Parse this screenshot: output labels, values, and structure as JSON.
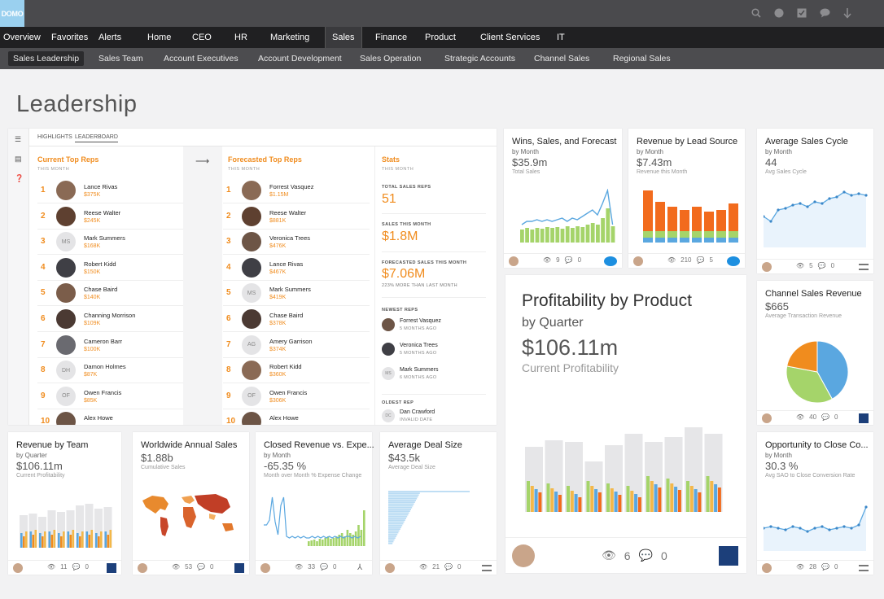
{
  "app": {
    "logo_text": "DOMO",
    "top_icons": [
      "search-icon",
      "globe-icon",
      "tasks-icon",
      "chat-icon",
      "download-icon"
    ]
  },
  "nav": {
    "items": [
      "Overview",
      "Favorites",
      "Alerts",
      "Home",
      "CEO",
      "HR",
      "Marketing",
      "Sales",
      "Finance",
      "Product",
      "Client Services",
      "IT"
    ],
    "active": "Sales"
  },
  "subnav": {
    "items": [
      "Sales Leadership",
      "Sales Team",
      "Account Executives",
      "Account Development",
      "Sales Operation",
      "Strategic Accounts",
      "Channel Sales",
      "Regional Sales"
    ],
    "active": "Sales Leadership"
  },
  "page": {
    "title": "Leadership"
  },
  "leaderboard": {
    "tabs": [
      "HIGHLIGHTS",
      "LEADERBOARD"
    ],
    "active_tab": "LEADERBOARD",
    "current": {
      "title": "Current Top Reps",
      "subtitle": "THIS MONTH",
      "reps": [
        {
          "rank": "1",
          "name": "Lance Rivas",
          "amount": "$375K",
          "initials": ""
        },
        {
          "rank": "2",
          "name": "Reese Walter",
          "amount": "$245K",
          "initials": ""
        },
        {
          "rank": "3",
          "name": "Mark Summers",
          "amount": "$168K",
          "initials": "MS"
        },
        {
          "rank": "4",
          "name": "Robert Kidd",
          "amount": "$150K",
          "initials": ""
        },
        {
          "rank": "5",
          "name": "Chase Baird",
          "amount": "$140K",
          "initials": ""
        },
        {
          "rank": "6",
          "name": "Channing Morrison",
          "amount": "$109K",
          "initials": ""
        },
        {
          "rank": "7",
          "name": "Cameron Barr",
          "amount": "$100K",
          "initials": ""
        },
        {
          "rank": "8",
          "name": "Damon Holmes",
          "amount": "$87K",
          "initials": "DH"
        },
        {
          "rank": "9",
          "name": "Owen Francis",
          "amount": "$85K",
          "initials": "OF"
        },
        {
          "rank": "10",
          "name": "Alex Howe",
          "amount": "",
          "initials": ""
        }
      ]
    },
    "forecast": {
      "title": "Forecasted Top Reps",
      "subtitle": "THIS MONTH",
      "reps": [
        {
          "rank": "1",
          "name": "Forrest Vasquez",
          "amount": "$1.15M",
          "initials": ""
        },
        {
          "rank": "2",
          "name": "Reese Walter",
          "amount": "$881K",
          "initials": ""
        },
        {
          "rank": "3",
          "name": "Veronica Trees",
          "amount": "$476K",
          "initials": ""
        },
        {
          "rank": "4",
          "name": "Lance Rivas",
          "amount": "$467K",
          "initials": ""
        },
        {
          "rank": "5",
          "name": "Mark Summers",
          "amount": "$419K",
          "initials": "MS"
        },
        {
          "rank": "6",
          "name": "Chase Baird",
          "amount": "$378K",
          "initials": ""
        },
        {
          "rank": "7",
          "name": "Amery Garrison",
          "amount": "$374K",
          "initials": "AG"
        },
        {
          "rank": "8",
          "name": "Robert Kidd",
          "amount": "$360K",
          "initials": ""
        },
        {
          "rank": "9",
          "name": "Owen Francis",
          "amount": "$306K",
          "initials": "OF"
        },
        {
          "rank": "10",
          "name": "Alex Howe",
          "amount": "",
          "initials": ""
        }
      ]
    },
    "stats": {
      "title": "Stats",
      "subtitle": "THIS MONTH",
      "total_reps_label": "TOTAL SALES REPS",
      "total_reps": "51",
      "sales_label": "SALES THIS MONTH",
      "sales": "$1.8M",
      "forecast_label": "FORECASTED SALES THIS MONTH",
      "forecast": "$7.06M",
      "forecast_note": "223% MORE THAN LAST MONTH",
      "newest_label": "NEWEST REPS",
      "newest": [
        {
          "name": "Forrest Vasquez",
          "since": "5 MONTHS AGO",
          "initials": ""
        },
        {
          "name": "Veronica Trees",
          "since": "5 MONTHS AGO",
          "initials": ""
        },
        {
          "name": "Mark Summers",
          "since": "6 MONTHS AGO",
          "initials": "MS"
        }
      ],
      "oldest_label": "OLDEST REP",
      "oldest": {
        "name": "Dan Crawford",
        "since": "INVALID DATE",
        "initials": "DC"
      }
    }
  },
  "cards": {
    "wins": {
      "title": "Wins, Sales, and Forecast",
      "sub": "by Month",
      "value": "$35.9m",
      "caption": "Total Sales",
      "views": "9",
      "comments": "0"
    },
    "lead": {
      "title": "Revenue by Lead Source",
      "sub": "by Month",
      "value": "$7.43m",
      "caption": "Revenue this Month",
      "views": "210",
      "comments": "5"
    },
    "cycle": {
      "title": "Average Sales Cycle",
      "sub": "by Month",
      "value": "44",
      "caption": "Avg Sales Cycle",
      "views": "5",
      "comments": "0"
    },
    "profit": {
      "title": "Profitability by Product",
      "sub": "by Quarter",
      "value": "$106.11m",
      "caption": "Current Profitability",
      "views": "6",
      "comments": "0"
    },
    "channel": {
      "title": "Channel Sales Revenue",
      "sub": "",
      "value": "$665",
      "caption": "Average Transaction Revenue",
      "views": "40",
      "comments": "0"
    },
    "team": {
      "title": "Revenue by Team",
      "sub": "by Quarter",
      "value": "$106.11m",
      "caption": "Current Profitability",
      "views": "11",
      "comments": "0"
    },
    "world": {
      "title": "Worldwide Annual Sales",
      "sub": "",
      "value": "$1.88b",
      "caption": "Cumulative Sales",
      "views": "53",
      "comments": "0"
    },
    "closed": {
      "title": "Closed Revenue vs. Expe...",
      "sub": "by Month",
      "value": "-65.35 %",
      "caption": "Month over Month % Expense Change",
      "views": "33",
      "comments": "0"
    },
    "deal": {
      "title": "Average Deal Size",
      "sub": "",
      "value": "$43.5k",
      "caption": "Average Deal Size",
      "views": "21",
      "comments": "0"
    },
    "opp": {
      "title": "Opportunity to Close Co...",
      "sub": "by Month",
      "value": "30.3 %",
      "caption": "Avg SAO to Close Conversion Rate",
      "views": "28",
      "comments": "0"
    }
  },
  "colors": {
    "accent": "#f08c1e",
    "green": "#a5d46a",
    "blue": "#5aa7e0",
    "light_bar": "#e6e6e8",
    "orange_dark": "#f26b1d"
  }
}
